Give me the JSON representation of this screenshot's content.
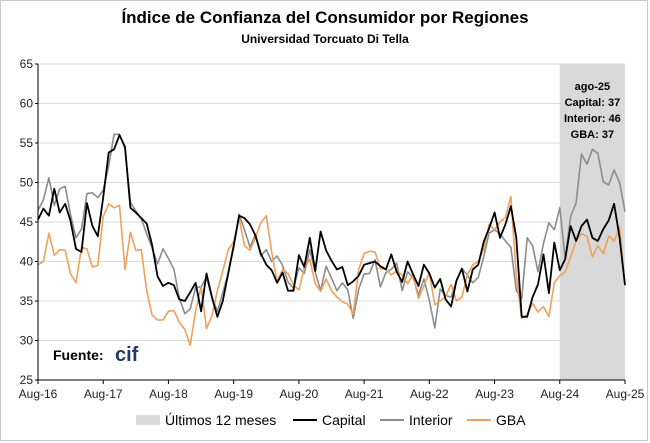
{
  "chart_data": {
    "type": "line",
    "title": "Índice de Confianza del Consumidor por Regiones",
    "subtitle": "Universidad Torcuato Di Tella",
    "source_label": "Fuente:",
    "source_logo": "cif",
    "x_tick_labels": [
      "Aug-16",
      "Aug-17",
      "Aug-18",
      "Aug-19",
      "Aug-20",
      "Aug-21",
      "Aug-22",
      "Aug-23",
      "Aug-24",
      "Aug-25"
    ],
    "ylim": [
      25,
      65
    ],
    "y_ticks": [
      25,
      30,
      35,
      40,
      45,
      50,
      55,
      60,
      65
    ],
    "grid": "horizontal",
    "shaded_region": {
      "label": "Últimos 12 meses",
      "start": 96,
      "end": 108,
      "color": "#d9d9d9"
    },
    "annotation": [
      "ago-25",
      "Capital: 37",
      "Interior: 46",
      "GBA: 37"
    ],
    "legend_position": "bottom",
    "series": [
      {
        "name": "Capital",
        "color": "#000000",
        "values": [
          45.3,
          46.7,
          45.8,
          49.2,
          46.2,
          47.3,
          45.1,
          41.6,
          41.2,
          47.4,
          44.5,
          43.2,
          48.1,
          53.8,
          54.2,
          56.0,
          54.5,
          46.8,
          46.2,
          45.5,
          44.8,
          42.1,
          38.1,
          36.9,
          37.3,
          37.0,
          35.2,
          35.0,
          36.1,
          37.3,
          33.7,
          38.5,
          35.5,
          33.0,
          35.0,
          38.5,
          42.0,
          45.8,
          45.5,
          44.7,
          43.3,
          41.0,
          39.6,
          38.9,
          37.3,
          38.6,
          36.3,
          36.3,
          40.8,
          39.3,
          43.0,
          38.8,
          43.8,
          41.4,
          40.1,
          39.0,
          39.3,
          37.0,
          37.5,
          38.2,
          39.6,
          39.8,
          40.0,
          39.4,
          39.0,
          40.9,
          38.7,
          37.4,
          40.0,
          38.4,
          36.9,
          39.6,
          38.5,
          36.7,
          37.8,
          35.2,
          34.3,
          37.6,
          39.1,
          36.2,
          39.0,
          39.6,
          42.5,
          44.2,
          46.2,
          43.0,
          44.7,
          47.0,
          43.0,
          33.0,
          33.0,
          35.5,
          37.1,
          40.9,
          36.0,
          42.4,
          38.9,
          40.3,
          44.5,
          42.6,
          44.5,
          45.3,
          43.0,
          42.6,
          44.1,
          45.2,
          47.3,
          43.0,
          37.0
        ]
      },
      {
        "name": "Interior",
        "color": "#8c8c8c",
        "values": [
          46.5,
          47.8,
          50.6,
          47.1,
          49.2,
          49.5,
          45.9,
          43.0,
          44.1,
          48.6,
          48.7,
          48.1,
          49.0,
          52.1,
          56.1,
          56.1,
          54.3,
          47.5,
          46.4,
          45.4,
          43.5,
          41.7,
          39.7,
          41.6,
          40.4,
          39.0,
          35.4,
          33.4,
          34.0,
          36.7,
          36.8,
          38.0,
          35.5,
          33.7,
          36.1,
          38.5,
          41.8,
          46.0,
          44.0,
          41.8,
          43.4,
          40.7,
          41.5,
          40.0,
          40.7,
          39.5,
          37.4,
          36.6,
          39.2,
          38.5,
          41.5,
          38.7,
          36.3,
          39.4,
          37.9,
          36.3,
          37.3,
          36.4,
          32.8,
          36.5,
          38.4,
          38.5,
          40.2,
          36.8,
          38.6,
          39.0,
          39.8,
          36.3,
          38.7,
          38.0,
          35.8,
          37.8,
          35.1,
          31.6,
          36.5,
          35.7,
          35.5,
          37.6,
          39.1,
          38.3,
          37.3,
          38.0,
          40.6,
          43.6,
          44.0,
          43.5,
          42.6,
          41.8,
          36.3,
          35.3,
          43.0,
          42.0,
          38.7,
          42.3,
          44.9,
          44.0,
          46.8,
          40.3,
          45.7,
          47.4,
          53.6,
          52.3,
          54.2,
          53.7,
          50.1,
          49.7,
          51.6,
          50.0,
          46.3
        ]
      },
      {
        "name": "GBA",
        "color": "#f0a05a",
        "values": [
          39.6,
          40.0,
          43.6,
          40.8,
          41.5,
          41.4,
          38.4,
          37.3,
          41.8,
          41.6,
          39.3,
          39.5,
          45.7,
          47.3,
          46.8,
          47.1,
          39.0,
          43.7,
          41.4,
          41.5,
          36.3,
          33.2,
          32.6,
          32.6,
          33.7,
          33.8,
          32.3,
          31.4,
          29.4,
          33.7,
          36.8,
          31.5,
          33.1,
          36.3,
          38.8,
          41.5,
          42.5,
          45.5,
          42.0,
          41.4,
          43.0,
          44.9,
          45.8,
          41.2,
          37.4,
          39.0,
          38.5,
          37.0,
          36.4,
          39.2,
          40.3,
          37.2,
          36.2,
          37.8,
          36.3,
          35.5,
          34.9,
          34.6,
          33.3,
          39.0,
          41.0,
          41.3,
          41.2,
          39.1,
          39.0,
          38.3,
          38.8,
          38.3,
          37.2,
          38.3,
          35.3,
          36.9,
          38.6,
          34.5,
          35.0,
          35.6,
          37.1,
          35.0,
          35.5,
          38.3,
          39.6,
          40.0,
          41.6,
          44.7,
          44.0,
          45.0,
          45.6,
          48.2,
          38.2,
          32.8,
          33.3,
          34.7,
          33.6,
          34.3,
          33.0,
          37.3,
          38.2,
          38.7,
          40.6,
          42.6,
          43.5,
          43.2,
          40.6,
          42.0,
          41.0,
          43.2,
          42.6,
          44.3,
          37.0
        ]
      }
    ]
  }
}
